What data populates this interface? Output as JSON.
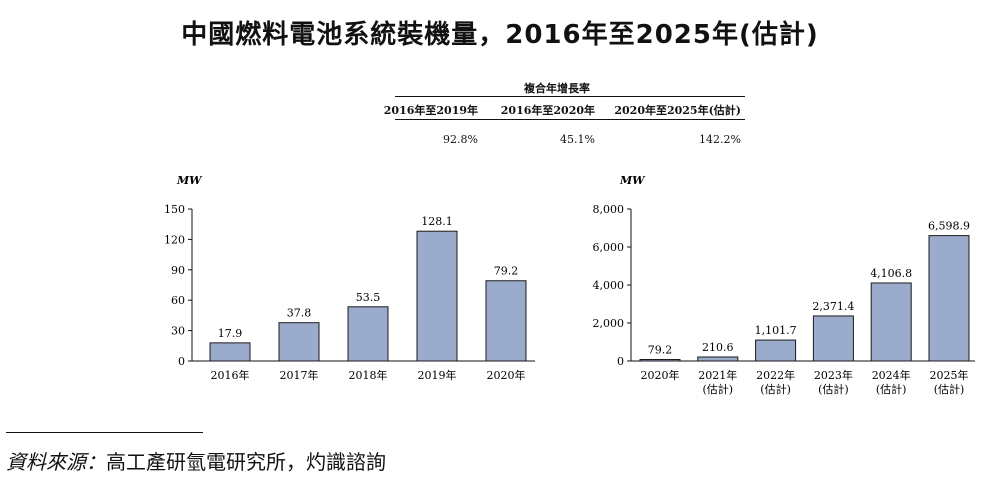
{
  "title": "中國燃料電池系統裝機量，2016年至2025年(估計)",
  "cagr": {
    "caption": "複合年增長率",
    "headers": [
      "2016年至2019年",
      "2016年至2020年",
      "2020年至2025年(估計)"
    ],
    "values": [
      "92.8%",
      "45.1%",
      "142.2%"
    ]
  },
  "source": {
    "label": "資料來源：",
    "text": "高工產研氫電研究所，灼識諮詢"
  },
  "colors": {
    "bar": "#9aabcc",
    "bar_stroke": "#1a1a1a",
    "axis": "#111111"
  },
  "chart_data": [
    {
      "type": "bar",
      "ylabel": "MW",
      "ylim": [
        0,
        150
      ],
      "yticks": [
        "0",
        "30",
        "60",
        "90",
        "120",
        "150"
      ],
      "ytick_values": [
        0,
        30,
        60,
        90,
        120,
        150
      ],
      "categories": [
        [
          "2016年"
        ],
        [
          "2017年"
        ],
        [
          "2018年"
        ],
        [
          "2019年"
        ],
        [
          "2020年"
        ]
      ],
      "values": [
        17.9,
        37.8,
        53.5,
        128.1,
        79.2
      ],
      "labels": [
        "17.9",
        "37.8",
        "53.5",
        "128.1",
        "79.2"
      ]
    },
    {
      "type": "bar",
      "ylabel": "MW",
      "ylim": [
        0,
        8000
      ],
      "yticks": [
        "0",
        "2,000",
        "4,000",
        "6,000",
        "8,000"
      ],
      "ytick_values": [
        0,
        2000,
        4000,
        6000,
        8000
      ],
      "categories": [
        [
          "2020年"
        ],
        [
          "2021年",
          "(估計)"
        ],
        [
          "2022年",
          "(估計)"
        ],
        [
          "2023年",
          "(估計)"
        ],
        [
          "2024年",
          "(估計)"
        ],
        [
          "2025年",
          "(估計)"
        ]
      ],
      "values": [
        79.2,
        210.6,
        1101.7,
        2371.4,
        4106.8,
        6598.9
      ],
      "labels": [
        "79.2",
        "210.6",
        "1,101.7",
        "2,371.4",
        "4,106.8",
        "6,598.9"
      ]
    }
  ]
}
